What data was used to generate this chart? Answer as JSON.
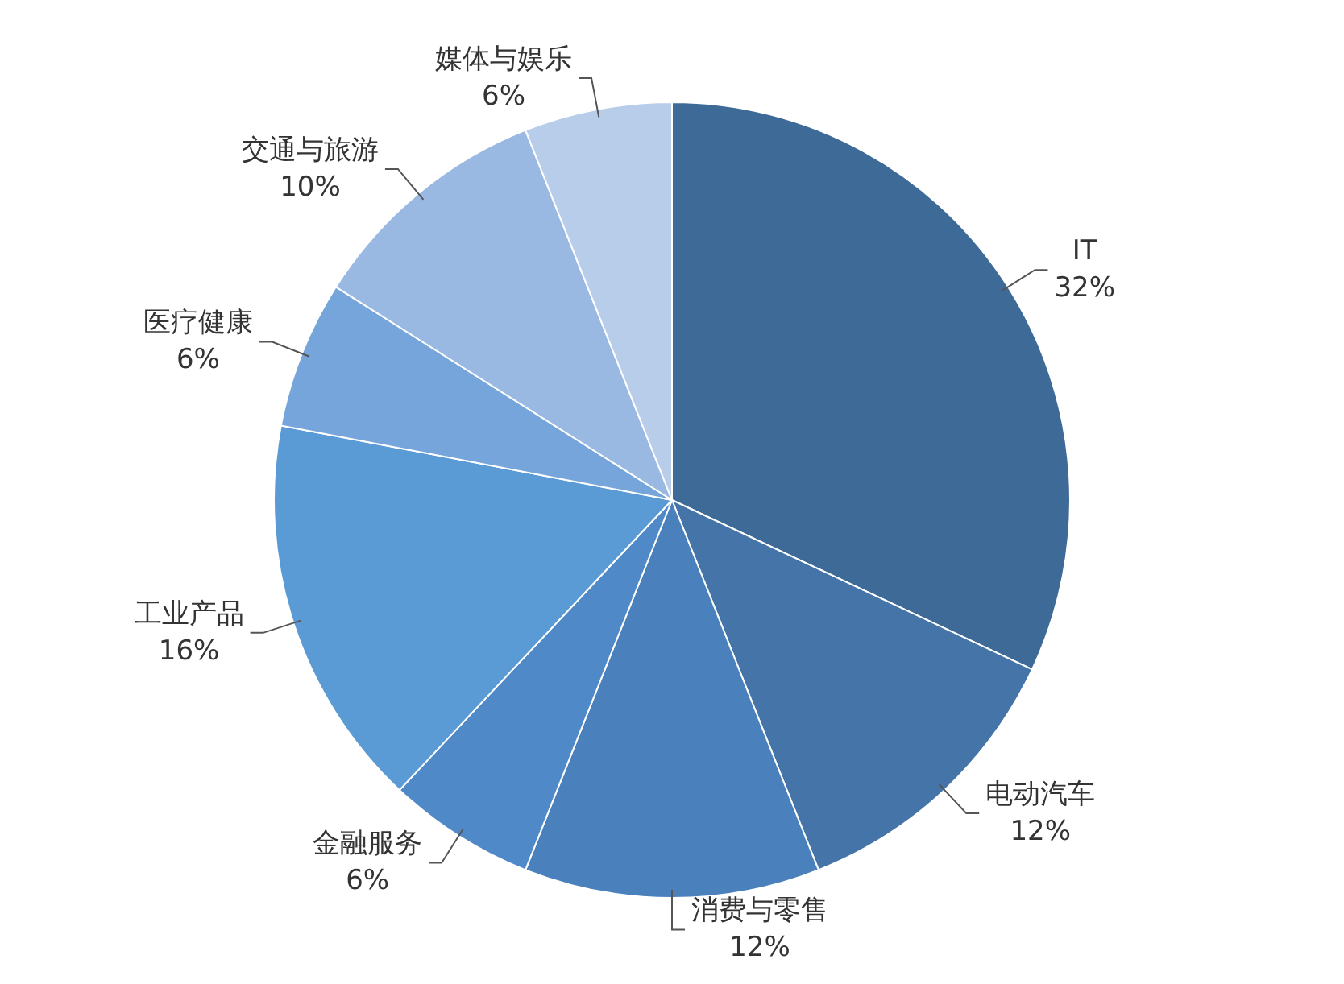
{
  "chart_data": {
    "type": "pie",
    "categories": [
      "IT",
      "电动汽车",
      "消费与零售",
      "金融服务",
      "工业产品",
      "医疗健康",
      "交通与旅游",
      "媒体与娱乐"
    ],
    "values": [
      32,
      12,
      12,
      6,
      16,
      6,
      10,
      6
    ],
    "value_labels": [
      "32%",
      "12%",
      "12%",
      "6%",
      "16%",
      "6%",
      "10%",
      "6%"
    ],
    "colors": [
      "#3e6a98",
      "#4474a8",
      "#4a80bb",
      "#5089c8",
      "#5b9bd5",
      "#75a5da",
      "#9ab9e2",
      "#b8cdea"
    ],
    "legend": false
  }
}
